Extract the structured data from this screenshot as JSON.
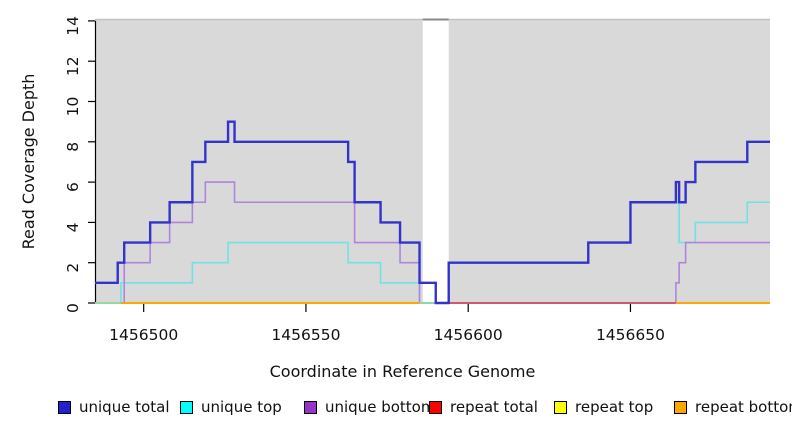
{
  "chart_data": {
    "type": "line",
    "subtype": "step-coverage",
    "title": "",
    "xlabel": "Coordinate in Reference Genome",
    "ylabel": "Read Coverage Depth",
    "xlim": [
      1456485,
      1456693
    ],
    "ylim": [
      0,
      14
    ],
    "x_ticks": [
      1456500,
      1456550,
      1456600,
      1456650
    ],
    "y_ticks": [
      0,
      2,
      4,
      6,
      8,
      10,
      12,
      14
    ],
    "grid": false,
    "legend_position": "bottom",
    "plot_background": "#d9d9d9",
    "gap_region": {
      "x1": 1456586,
      "x2": 1456594,
      "fill": "#ffffff",
      "top_cap_color": "#8a8a8a"
    },
    "top_border_color": "#c2c2c2",
    "series": [
      {
        "name": "unique total",
        "line_color": "#3333cc",
        "swatch_color": "#2222cc",
        "line_width": 2.4,
        "steps": [
          [
            1456485,
            1
          ],
          [
            1456492,
            2
          ],
          [
            1456494,
            3
          ],
          [
            1456502,
            4
          ],
          [
            1456508,
            5
          ],
          [
            1456515,
            7
          ],
          [
            1456519,
            8
          ],
          [
            1456526,
            9
          ],
          [
            1456528,
            8
          ],
          [
            1456563,
            7
          ],
          [
            1456565,
            5
          ],
          [
            1456573,
            4
          ],
          [
            1456579,
            3
          ],
          [
            1456585,
            1
          ],
          [
            1456590,
            0
          ],
          [
            1456594,
            2
          ],
          [
            1456637,
            3
          ],
          [
            1456650,
            5
          ],
          [
            1456664,
            6
          ],
          [
            1456665,
            5
          ],
          [
            1456667,
            6
          ],
          [
            1456670,
            7
          ],
          [
            1456686,
            8
          ]
        ]
      },
      {
        "name": "unique top",
        "line_color": "#70e2e6",
        "swatch_color": "#00ffff",
        "line_width": 1.6,
        "steps": [
          [
            1456485,
            0
          ],
          [
            1456493,
            1
          ],
          [
            1456515,
            2
          ],
          [
            1456526,
            3
          ],
          [
            1456563,
            2
          ],
          [
            1456573,
            1
          ],
          [
            1456585,
            0
          ],
          [
            1456594,
            2
          ],
          [
            1456637,
            3
          ],
          [
            1456650,
            5
          ],
          [
            1456665,
            3
          ],
          [
            1456670,
            4
          ],
          [
            1456686,
            5
          ]
        ]
      },
      {
        "name": "unique bottom",
        "line_color": "#b084dc",
        "swatch_color": "#9933cc",
        "line_width": 1.6,
        "steps": [
          [
            1456485,
            0
          ],
          [
            1456494,
            2
          ],
          [
            1456502,
            3
          ],
          [
            1456508,
            4
          ],
          [
            1456515,
            5
          ],
          [
            1456519,
            6
          ],
          [
            1456528,
            5
          ],
          [
            1456565,
            3
          ],
          [
            1456579,
            2
          ],
          [
            1456585,
            0
          ],
          [
            1456664,
            1
          ],
          [
            1456665,
            2
          ],
          [
            1456667,
            3
          ]
        ]
      },
      {
        "name": "repeat total",
        "line_color": "#ff0000",
        "swatch_color": "#ff0000",
        "line_width": 1.6,
        "steps": [
          [
            1456485,
            0
          ]
        ]
      },
      {
        "name": "repeat top",
        "line_color": "#ffff00",
        "swatch_color": "#ffff00",
        "line_width": 1.6,
        "steps": [
          [
            1456485,
            0
          ]
        ]
      },
      {
        "name": "repeat bottom",
        "line_color": "#ffa500",
        "swatch_color": "#ffa500",
        "line_width": 1.6,
        "steps": [
          [
            1456485,
            0
          ]
        ]
      }
    ],
    "zero_line_segments": [
      {
        "x1": 1456485,
        "x2": 1456493,
        "color": "#8fdfa5"
      },
      {
        "x1": 1456493,
        "x2": 1456585,
        "color": "#ffa500"
      },
      {
        "x1": 1456585,
        "x2": 1456590,
        "color": "#8fdfa5"
      },
      {
        "x1": 1456594,
        "x2": 1456664,
        "color": "#d04e6e"
      },
      {
        "x1": 1456664,
        "x2": 1456693,
        "color": "#ffa500"
      }
    ],
    "legend": [
      {
        "label": "unique total"
      },
      {
        "label": "unique top"
      },
      {
        "label": "unique bottom"
      },
      {
        "label": "repeat total"
      },
      {
        "label": "repeat top"
      },
      {
        "label": "repeat bottom"
      }
    ]
  }
}
